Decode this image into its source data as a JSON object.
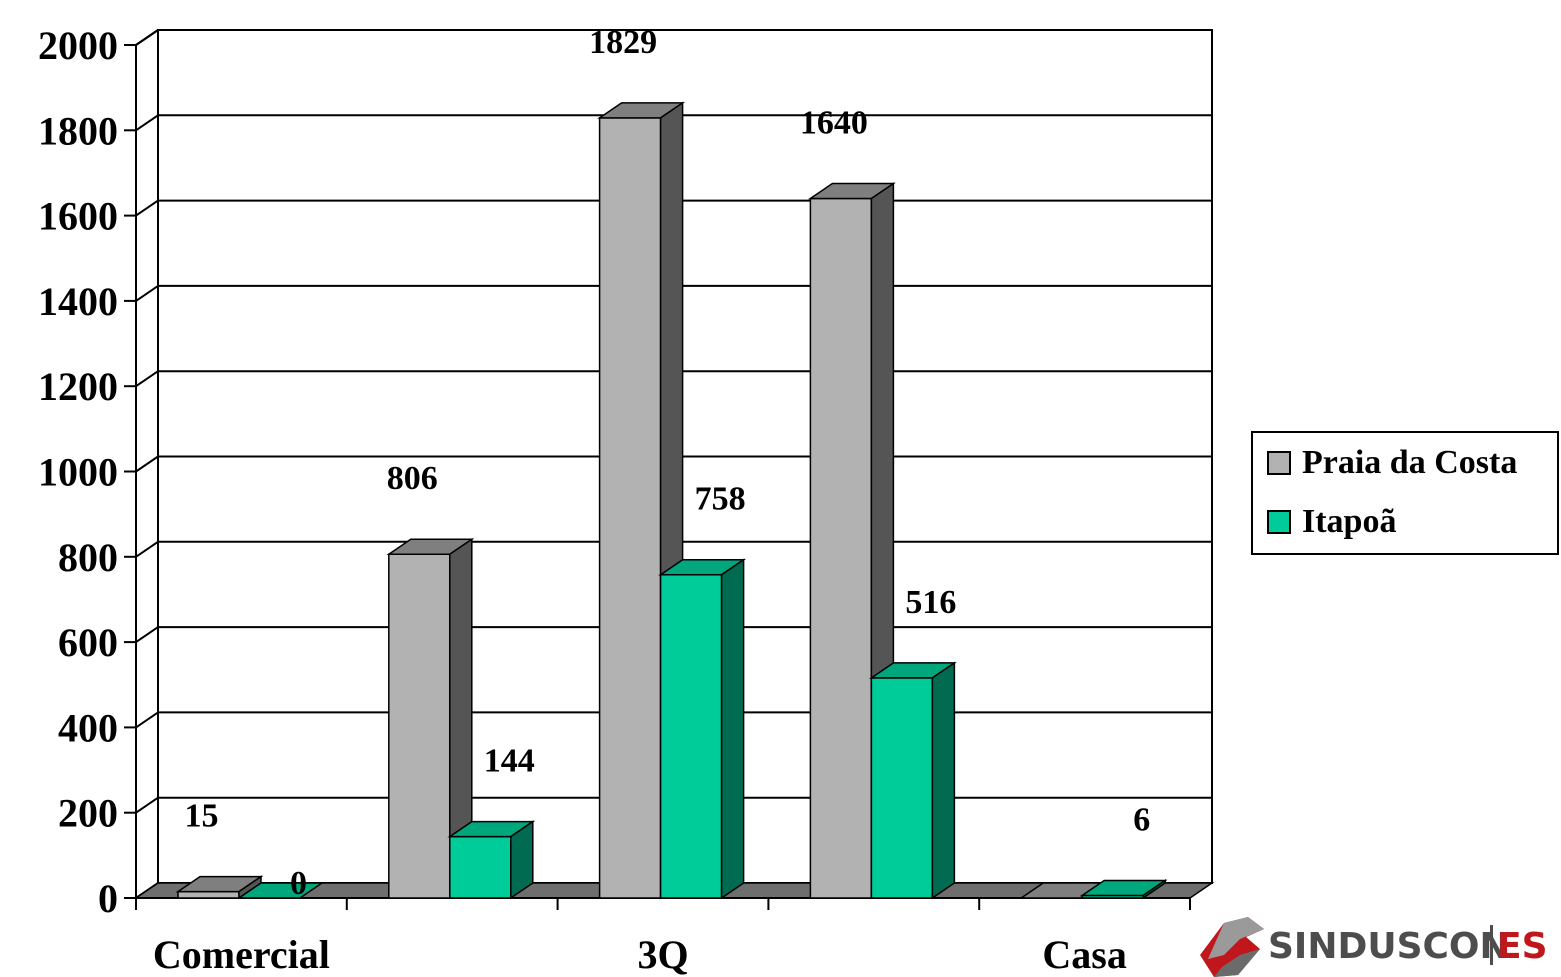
{
  "chart_data": {
    "type": "bar",
    "categories": [
      "Comercial",
      "",
      "3Q",
      "",
      "Casa"
    ],
    "series": [
      {
        "name": "Praia da Costa",
        "values": [
          15,
          806,
          1829,
          1640,
          0
        ]
      },
      {
        "name": "Itapoã",
        "values": [
          0,
          144,
          758,
          516,
          6
        ]
      }
    ],
    "data_labels": [
      [
        "15",
        "806",
        "1829",
        "1640",
        ""
      ],
      [
        "0",
        "144",
        "758",
        "516",
        "6"
      ]
    ],
    "y_ticks": [
      "0",
      "200",
      "400",
      "600",
      "800",
      "1000",
      "1200",
      "1400",
      "1600",
      "1800",
      "2000"
    ],
    "ylim": [
      0,
      2000
    ],
    "grid": true,
    "legend_position": "right",
    "colors": {
      "Praia da Costa": {
        "front": "#b2b2b2",
        "top": "#7f7f7f",
        "side": "#555555"
      },
      "Itapoã": {
        "front": "#00cc99",
        "top": "#00a67c",
        "side": "#006b50"
      }
    },
    "title": "",
    "xlabel": "",
    "ylabel": ""
  },
  "logo": {
    "name": "sinduscon-logo",
    "text_main": "SINDUSCON",
    "text_suffix": "ES",
    "main_color": "#4d4d4d",
    "suffix_color": "#c0171c"
  }
}
